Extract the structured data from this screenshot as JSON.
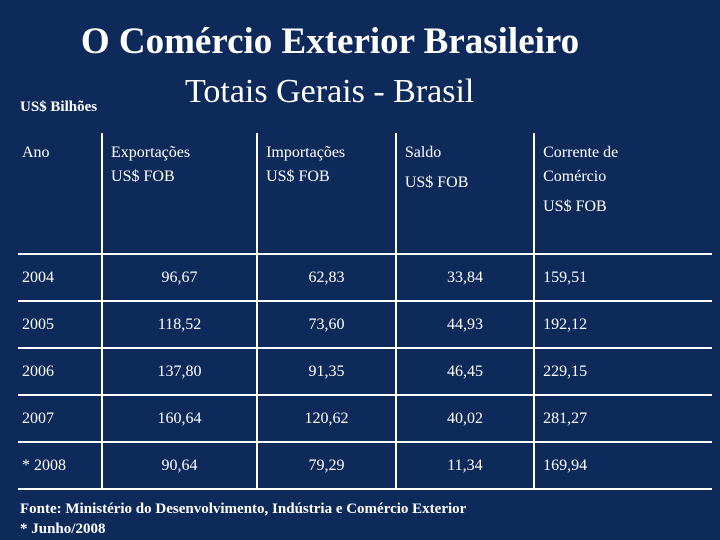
{
  "title": "O Comércio Exterior Brasileiro",
  "subtitle": "Totais Gerais - Brasil",
  "unit": "US$ Bilhões",
  "table": {
    "headers": {
      "ano": "Ano",
      "exportacoes_1": "Exportações",
      "exportacoes_2": "US$ FOB",
      "importacoes_1": "Importações",
      "importacoes_2": "US$ FOB",
      "saldo_1": "Saldo",
      "saldo_2": "US$ FOB",
      "corrente_1": "Corrente de",
      "corrente_2": "Comércio",
      "corrente_3": "US$ FOB"
    },
    "rows": [
      {
        "ano": "2004",
        "exportacoes": "96,67",
        "importacoes": "62,83",
        "saldo": "33,84",
        "corrente": "159,51"
      },
      {
        "ano": "2005",
        "exportacoes": "118,52",
        "importacoes": "73,60",
        "saldo": "44,93",
        "corrente": "192,12"
      },
      {
        "ano": "2006",
        "exportacoes": "137,80",
        "importacoes": "91,35",
        "saldo": "46,45",
        "corrente": "229,15"
      },
      {
        "ano": "2007",
        "exportacoes": "160,64",
        "importacoes": "120,62",
        "saldo": "40,02",
        "corrente": "281,27"
      },
      {
        "ano": "* 2008",
        "exportacoes": "90,64",
        "importacoes": "79,29",
        "saldo": "11,34",
        "corrente": "169,94"
      }
    ]
  },
  "footer": {
    "source": "Fonte: Ministério do Desenvolvimento, Indústria e Comércio Exterior",
    "note": "* Junho/2008"
  }
}
